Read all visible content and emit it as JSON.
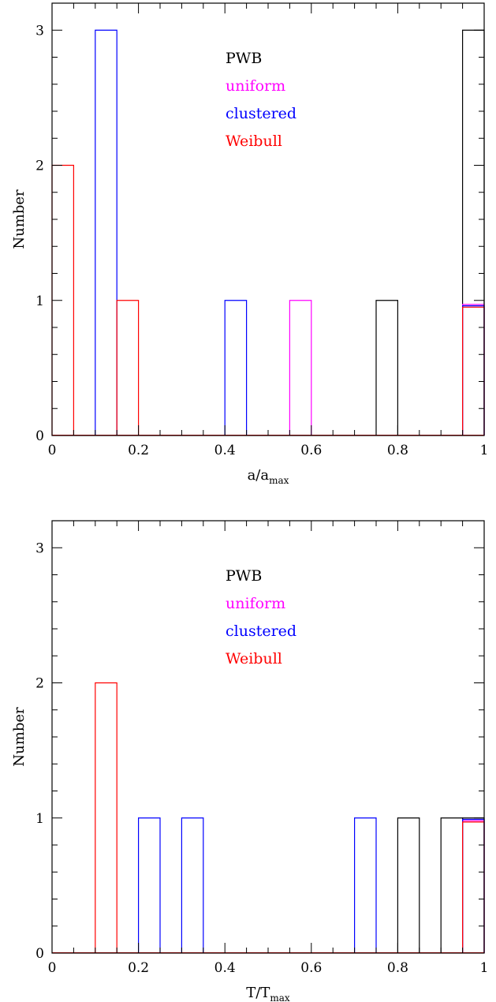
{
  "chart_data": [
    {
      "type": "bar",
      "subtype": "step-histogram",
      "xlabel": "a/a",
      "xlabel_subscript": "max",
      "ylabel": "Number",
      "xlim": [
        0,
        1
      ],
      "ylim": [
        0,
        3.2
      ],
      "bin_width": 0.05,
      "x_ticks": [
        "0",
        "0.2",
        "0.4",
        "0.6",
        "0.8",
        "1"
      ],
      "y_ticks": [
        "0",
        "1",
        "2",
        "3"
      ],
      "legend_position": "top-center",
      "series": [
        {
          "name": "PWB",
          "color": "#000000",
          "bins": [
            {
              "x": 0.75,
              "value": 1
            },
            {
              "x": 0.95,
              "value": 3
            }
          ]
        },
        {
          "name": "uniform",
          "color": "#ff00ff",
          "bins": [
            {
              "x": 0.55,
              "value": 1
            },
            {
              "x": 0.95,
              "value": 0.97
            }
          ]
        },
        {
          "name": "clustered",
          "color": "#0000ff",
          "bins": [
            {
              "x": 0.1,
              "value": 3
            },
            {
              "x": 0.4,
              "value": 1
            },
            {
              "x": 0.95,
              "value": 0.96
            }
          ]
        },
        {
          "name": "Weibull",
          "color": "#ff0000",
          "bins": [
            {
              "x": 0.0,
              "value": 2
            },
            {
              "x": 0.15,
              "value": 1
            },
            {
              "x": 0.95,
              "value": 0.95
            }
          ]
        }
      ]
    },
    {
      "type": "bar",
      "subtype": "step-histogram",
      "xlabel": "T/T",
      "xlabel_subscript": "max",
      "ylabel": "Number",
      "xlim": [
        0,
        1
      ],
      "ylim": [
        0,
        3.2
      ],
      "bin_width": 0.05,
      "x_ticks": [
        "0",
        "0.2",
        "0.4",
        "0.6",
        "0.8",
        "1"
      ],
      "y_ticks": [
        "0",
        "1",
        "2",
        "3"
      ],
      "legend_position": "top-center",
      "series": [
        {
          "name": "PWB",
          "color": "#000000",
          "bins": [
            {
              "x": 0.8,
              "value": 1
            },
            {
              "x": 0.9,
              "value": 1
            },
            {
              "x": 0.95,
              "value": 1
            }
          ]
        },
        {
          "name": "uniform",
          "color": "#ff00ff",
          "bins": [
            {
              "x": 0.95,
              "value": 0.98
            }
          ]
        },
        {
          "name": "clustered",
          "color": "#0000ff",
          "bins": [
            {
              "x": 0.2,
              "value": 1
            },
            {
              "x": 0.3,
              "value": 1
            },
            {
              "x": 0.7,
              "value": 1
            },
            {
              "x": 0.95,
              "value": 0.99
            }
          ]
        },
        {
          "name": "Weibull",
          "color": "#ff0000",
          "bins": [
            {
              "x": 0.1,
              "value": 2
            },
            {
              "x": 0.95,
              "value": 0.97
            }
          ]
        }
      ]
    }
  ]
}
